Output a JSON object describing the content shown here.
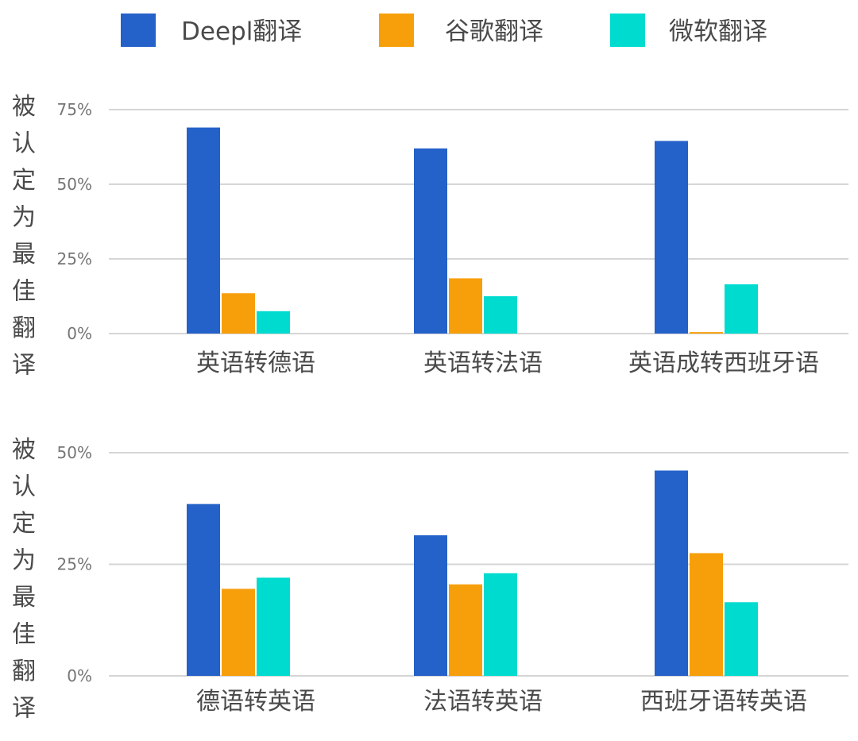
{
  "colors": {
    "deepl": "#2461c9",
    "google": "#f79f0a",
    "microsoft": "#00dbd0"
  },
  "legend": [
    {
      "label": "Deepl翻译",
      "color": "#2461c9"
    },
    {
      "label": "谷歌翻译",
      "color": "#f79f0a"
    },
    {
      "label": "微软翻译",
      "color": "#00dbd0"
    }
  ],
  "chart_data": [
    {
      "type": "bar",
      "ylabel": "被认定为最佳翻译",
      "ylim": [
        0,
        75
      ],
      "yticks": [
        "0%",
        "25%",
        "50%",
        "75%"
      ],
      "grid": true,
      "legend_position": "top",
      "categories": [
        "英语转德语",
        "英语转法语",
        "英语成转西班牙语"
      ],
      "series": [
        {
          "name": "Deepl翻译",
          "values": [
            69,
            62,
            64.5
          ]
        },
        {
          "name": "谷歌翻译",
          "values": [
            13.5,
            18.5,
            0.5
          ]
        },
        {
          "name": "微软翻译",
          "values": [
            7.5,
            12.5,
            16.5
          ]
        }
      ]
    },
    {
      "type": "bar",
      "ylabel": "被认定为最佳翻译",
      "ylim": [
        0,
        50
      ],
      "yticks": [
        "0%",
        "25%",
        "50%"
      ],
      "grid": true,
      "legend_position": "top",
      "categories": [
        "德语转英语",
        "法语转英语",
        "西班牙语转英语"
      ],
      "series": [
        {
          "name": "Deepl翻译",
          "values": [
            38.5,
            31.5,
            46
          ]
        },
        {
          "name": "谷歌翻译",
          "values": [
            19.5,
            20.5,
            27.5
          ]
        },
        {
          "name": "微软翻译",
          "values": [
            22,
            23,
            16.5
          ]
        }
      ]
    }
  ]
}
